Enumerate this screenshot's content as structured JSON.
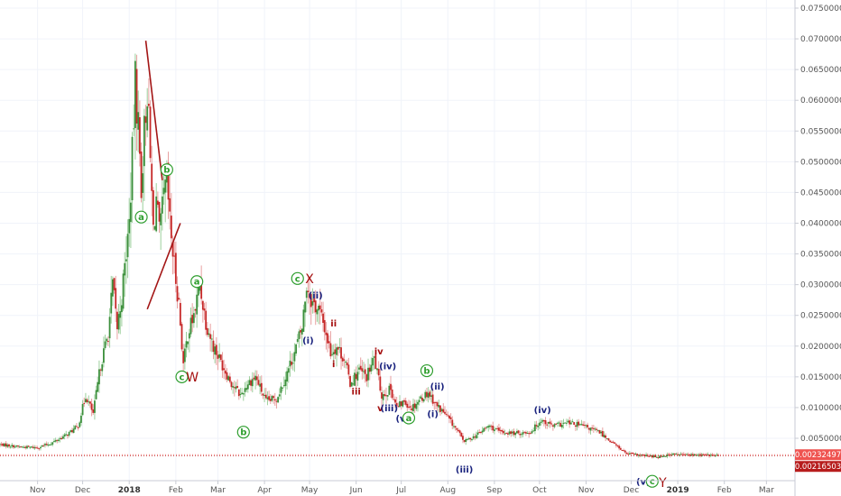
{
  "colors": {
    "up": "#26a69a",
    "down": "#ef5350",
    "body_up": "#3c8f3c",
    "body_down": "#c62828",
    "wave_green": "#2e9e2e",
    "wave_blue": "#1a237e",
    "wave_red": "#a50e0e",
    "trendline": "#a31515",
    "price_tag_light": "#ef5350",
    "price_tag_dark": "#b71c1c",
    "grid": "#f0f3fa"
  },
  "chart_data": {
    "type": "candlestick",
    "y_axis": {
      "position": "right",
      "ylim": [
        0,
        0.078
      ],
      "ticks": [
        0.075,
        0.07,
        0.065,
        0.06,
        0.055,
        0.05,
        0.045,
        0.04,
        0.035,
        0.03,
        0.025,
        0.02,
        0.015,
        0.01,
        0.005
      ],
      "tick_labels": [
        "0.07500000",
        "0.07000000",
        "0.06500000",
        "0.06000000",
        "0.05500000",
        "0.05000000",
        "0.04500000",
        "0.04000000",
        "0.03500000",
        "0.03000000",
        "0.02500000",
        "0.02000000",
        "0.01500000",
        "0.01000000",
        "0.00500000"
      ]
    },
    "x_axis": {
      "range": [
        "2017-10-07",
        "2019-03-20"
      ],
      "ticks": [
        {
          "date": "2017-11-01",
          "label": "Nov",
          "bold": false
        },
        {
          "date": "2017-12-01",
          "label": "Dec",
          "bold": false
        },
        {
          "date": "2018-01-01",
          "label": "2018",
          "bold": true
        },
        {
          "date": "2018-02-01",
          "label": "Feb",
          "bold": false
        },
        {
          "date": "2018-03-01",
          "label": "Mar",
          "bold": false
        },
        {
          "date": "2018-04-01",
          "label": "Apr",
          "bold": false
        },
        {
          "date": "2018-05-01",
          "label": "May",
          "bold": false
        },
        {
          "date": "2018-06-01",
          "label": "Jun",
          "bold": false
        },
        {
          "date": "2018-07-01",
          "label": "Jul",
          "bold": false
        },
        {
          "date": "2018-08-01",
          "label": "Aug",
          "bold": false
        },
        {
          "date": "2018-09-01",
          "label": "Sep",
          "bold": false
        },
        {
          "date": "2018-10-01",
          "label": "Oct",
          "bold": false
        },
        {
          "date": "2018-11-01",
          "label": "Nov",
          "bold": false
        },
        {
          "date": "2018-12-01",
          "label": "Dec",
          "bold": false
        },
        {
          "date": "2019-01-01",
          "label": "2019",
          "bold": true
        },
        {
          "date": "2019-02-01",
          "label": "Feb",
          "bold": false
        },
        {
          "date": "2019-03-01",
          "label": "Mar",
          "bold": false
        }
      ]
    },
    "price_path": [
      {
        "date": "2017-10-07",
        "close": 0.004
      },
      {
        "date": "2017-10-20",
        "close": 0.0036
      },
      {
        "date": "2017-11-01",
        "close": 0.0035
      },
      {
        "date": "2017-11-10",
        "close": 0.0042
      },
      {
        "date": "2017-11-20",
        "close": 0.0055
      },
      {
        "date": "2017-11-28",
        "close": 0.007
      },
      {
        "date": "2017-12-03",
        "close": 0.012
      },
      {
        "date": "2017-12-08",
        "close": 0.009
      },
      {
        "date": "2017-12-13",
        "close": 0.017
      },
      {
        "date": "2017-12-18",
        "close": 0.022
      },
      {
        "date": "2017-12-21",
        "close": 0.03
      },
      {
        "date": "2017-12-24",
        "close": 0.023
      },
      {
        "date": "2017-12-27",
        "close": 0.028
      },
      {
        "date": "2018-01-01",
        "close": 0.04
      },
      {
        "date": "2018-01-03",
        "close": 0.051
      },
      {
        "date": "2018-01-05",
        "close": 0.063
      },
      {
        "date": "2018-01-07",
        "close": 0.056
      },
      {
        "date": "2018-01-09",
        "close": 0.046
      },
      {
        "date": "2018-01-11",
        "close": 0.055
      },
      {
        "date": "2018-01-13",
        "close": 0.062
      },
      {
        "date": "2018-01-15",
        "close": 0.05
      },
      {
        "date": "2018-01-17",
        "close": 0.039
      },
      {
        "date": "2018-01-19",
        "close": 0.044
      },
      {
        "date": "2018-01-21",
        "close": 0.038
      },
      {
        "date": "2018-01-24",
        "close": 0.044
      },
      {
        "date": "2018-01-26",
        "close": 0.047
      },
      {
        "date": "2018-01-28",
        "close": 0.04
      },
      {
        "date": "2018-01-31",
        "close": 0.033
      },
      {
        "date": "2018-02-03",
        "close": 0.027
      },
      {
        "date": "2018-02-06",
        "close": 0.017
      },
      {
        "date": "2018-02-09",
        "close": 0.022
      },
      {
        "date": "2018-02-13",
        "close": 0.025
      },
      {
        "date": "2018-02-17",
        "close": 0.03
      },
      {
        "date": "2018-02-21",
        "close": 0.024
      },
      {
        "date": "2018-02-26",
        "close": 0.02
      },
      {
        "date": "2018-03-04",
        "close": 0.017
      },
      {
        "date": "2018-03-10",
        "close": 0.014
      },
      {
        "date": "2018-03-16",
        "close": 0.012
      },
      {
        "date": "2018-03-21",
        "close": 0.014
      },
      {
        "date": "2018-03-26",
        "close": 0.015
      },
      {
        "date": "2018-04-02",
        "close": 0.011
      },
      {
        "date": "2018-04-09",
        "close": 0.0115
      },
      {
        "date": "2018-04-15",
        "close": 0.015
      },
      {
        "date": "2018-04-21",
        "close": 0.019
      },
      {
        "date": "2018-04-26",
        "close": 0.023
      },
      {
        "date": "2018-04-29",
        "close": 0.03
      },
      {
        "date": "2018-05-03",
        "close": 0.027
      },
      {
        "date": "2018-05-07",
        "close": 0.026
      },
      {
        "date": "2018-05-11",
        "close": 0.023
      },
      {
        "date": "2018-05-15",
        "close": 0.019
      },
      {
        "date": "2018-05-19",
        "close": 0.02
      },
      {
        "date": "2018-05-24",
        "close": 0.018
      },
      {
        "date": "2018-05-28",
        "close": 0.014
      },
      {
        "date": "2018-06-03",
        "close": 0.016
      },
      {
        "date": "2018-06-08",
        "close": 0.015
      },
      {
        "date": "2018-06-13",
        "close": 0.018
      },
      {
        "date": "2018-06-18",
        "close": 0.012
      },
      {
        "date": "2018-06-24",
        "close": 0.013
      },
      {
        "date": "2018-06-28",
        "close": 0.01
      },
      {
        "date": "2018-07-03",
        "close": 0.011
      },
      {
        "date": "2018-07-08",
        "close": 0.01
      },
      {
        "date": "2018-07-14",
        "close": 0.0115
      },
      {
        "date": "2018-07-19",
        "close": 0.0125
      },
      {
        "date": "2018-07-24",
        "close": 0.0105
      },
      {
        "date": "2018-07-30",
        "close": 0.009
      },
      {
        "date": "2018-08-05",
        "close": 0.007
      },
      {
        "date": "2018-08-12",
        "close": 0.0045
      },
      {
        "date": "2018-08-20",
        "close": 0.0055
      },
      {
        "date": "2018-08-28",
        "close": 0.007
      },
      {
        "date": "2018-09-05",
        "close": 0.006
      },
      {
        "date": "2018-09-15",
        "close": 0.0058
      },
      {
        "date": "2018-09-25",
        "close": 0.006
      },
      {
        "date": "2018-10-02",
        "close": 0.008
      },
      {
        "date": "2018-10-10",
        "close": 0.007
      },
      {
        "date": "2018-10-20",
        "close": 0.0075
      },
      {
        "date": "2018-10-30",
        "close": 0.007
      },
      {
        "date": "2018-11-10",
        "close": 0.006
      },
      {
        "date": "2018-11-20",
        "close": 0.004
      },
      {
        "date": "2018-11-28",
        "close": 0.0025
      },
      {
        "date": "2018-12-08",
        "close": 0.0022
      },
      {
        "date": "2018-12-18",
        "close": 0.002
      },
      {
        "date": "2018-12-28",
        "close": 0.0024
      },
      {
        "date": "2019-01-08",
        "close": 0.0023
      },
      {
        "date": "2019-01-18",
        "close": 0.0023
      },
      {
        "date": "2019-01-28",
        "close": 0.0022
      }
    ],
    "price_tags": [
      {
        "value": 0.00232497,
        "label": "0.00232497",
        "style": "light"
      },
      {
        "value": 0.00216503,
        "label": "0.00216503",
        "style": "dark"
      }
    ],
    "trendlines": [
      {
        "from": {
          "date": "2018-01-12",
          "value": 0.0697
        },
        "to": {
          "date": "2018-01-23",
          "value": 0.047
        }
      },
      {
        "from": {
          "date": "2018-01-13",
          "value": 0.026
        },
        "to": {
          "date": "2018-02-04",
          "value": 0.04
        }
      }
    ],
    "annotations": [
      {
        "text": "a",
        "date": "2018-01-09",
        "value": 0.041,
        "color": "green",
        "circled": true
      },
      {
        "text": "b",
        "date": "2018-01-26",
        "value": 0.0487,
        "color": "green",
        "circled": true
      },
      {
        "text": "c",
        "date": "2018-02-05",
        "value": 0.015,
        "color": "green",
        "circled": true
      },
      {
        "text": "W",
        "date": "2018-02-12",
        "value": 0.015,
        "color": "red",
        "circled": false
      },
      {
        "text": "a",
        "date": "2018-02-15",
        "value": 0.0305,
        "color": "green",
        "circled": true
      },
      {
        "text": "b",
        "date": "2018-03-18",
        "value": 0.006,
        "color": "green",
        "circled": true
      },
      {
        "text": "c",
        "date": "2018-04-23",
        "value": 0.031,
        "color": "green",
        "circled": true
      },
      {
        "text": "X",
        "date": "2018-05-01",
        "value": 0.031,
        "color": "red",
        "circled": false
      },
      {
        "text": "(ii)",
        "date": "2018-05-05",
        "value": 0.0283,
        "color": "blue",
        "circled": false
      },
      {
        "text": "(i)",
        "date": "2018-04-30",
        "value": 0.021,
        "color": "blue",
        "circled": false
      },
      {
        "text": "ii",
        "date": "2018-05-17",
        "value": 0.0238,
        "color": "red",
        "circled": false
      },
      {
        "text": "i",
        "date": "2018-05-17",
        "value": 0.0172,
        "color": "red",
        "circled": false
      },
      {
        "text": "iii",
        "date": "2018-06-01",
        "value": 0.0127,
        "color": "red",
        "circled": false
      },
      {
        "text": "iv",
        "date": "2018-06-16",
        "value": 0.0192,
        "color": "red",
        "circled": false
      },
      {
        "text": "(iv)",
        "date": "2018-06-22",
        "value": 0.0168,
        "color": "blue",
        "circled": false
      },
      {
        "text": "v",
        "date": "2018-06-17",
        "value": 0.01,
        "color": "red",
        "circled": false
      },
      {
        "text": "(iii)",
        "date": "2018-06-23",
        "value": 0.01,
        "color": "blue",
        "circled": false
      },
      {
        "text": "(v)",
        "date": "2018-07-02",
        "value": 0.0083,
        "color": "blue",
        "circled": false
      },
      {
        "text": "a",
        "date": "2018-07-06",
        "value": 0.0083,
        "color": "green",
        "circled": true
      },
      {
        "text": "b",
        "date": "2018-07-18",
        "value": 0.016,
        "color": "green",
        "circled": true
      },
      {
        "text": "(ii)",
        "date": "2018-07-25",
        "value": 0.0135,
        "color": "blue",
        "circled": false
      },
      {
        "text": "(i)",
        "date": "2018-07-22",
        "value": 0.009,
        "color": "blue",
        "circled": false
      },
      {
        "text": "(iii)",
        "date": "2018-08-12",
        "value": 0.0,
        "color": "blue",
        "circled": false
      },
      {
        "text": "(iv)",
        "date": "2018-10-03",
        "value": 0.0097,
        "color": "blue",
        "circled": false
      },
      {
        "text": "(v)",
        "date": "2018-12-09",
        "value": -0.002,
        "color": "blue",
        "circled": false
      },
      {
        "text": "c",
        "date": "2018-12-15",
        "value": -0.002,
        "color": "green",
        "circled": true
      },
      {
        "text": "Y",
        "date": "2018-12-22",
        "value": -0.0022,
        "color": "red",
        "circled": false
      }
    ]
  }
}
